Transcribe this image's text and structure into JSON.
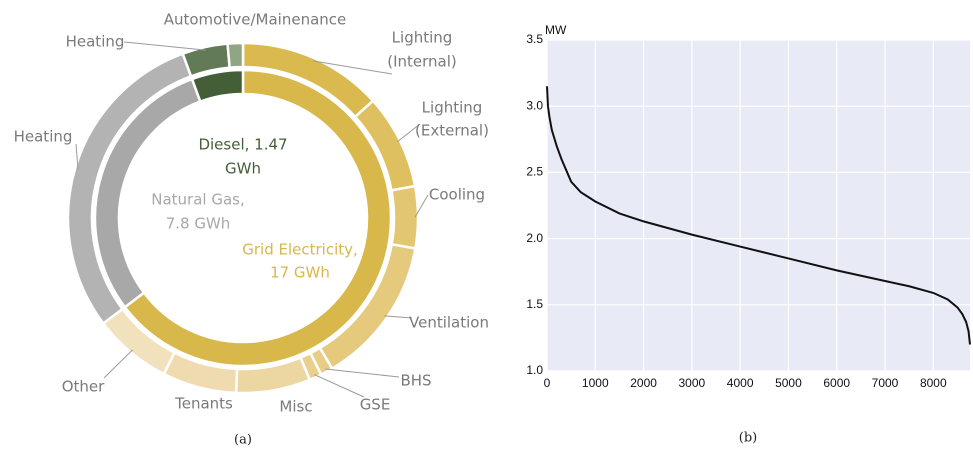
{
  "chart_data": [
    {
      "type": "donut",
      "caption": "(a)",
      "inner": {
        "values": [
          17,
          7.8,
          1.47
        ],
        "value_labels": [
          [
            "Grid Electricity,",
            "17 GWh"
          ],
          [
            "Natural Gas,",
            "7.8 GWh"
          ],
          [
            "Diesel, 1.47",
            "GWh"
          ]
        ],
        "colors": [
          "#d8b74b",
          "#a8a8a8",
          "#445f37"
        ]
      },
      "outer": {
        "categories": [
          [
            "Lighting",
            "(Internal)"
          ],
          [
            "Lighting",
            "(External)"
          ],
          [
            "Cooling"
          ],
          [
            "Ventilation"
          ],
          [
            "BHS"
          ],
          [
            "GSE"
          ],
          [
            "Misc"
          ],
          [
            "Tenants"
          ],
          [
            "Other"
          ],
          [
            "Heating"
          ],
          [
            "Heating"
          ],
          [
            "Automotive/Mainenance"
          ]
        ],
        "values": [
          3.5,
          2.3,
          1.5,
          3.6,
          0.3,
          0.3,
          1.8,
          1.8,
          1.9,
          7.8,
          1.1,
          0.37
        ],
        "colors": [
          "#dab94f",
          "#dfc061",
          "#e2c672",
          "#e5c97c",
          "#e8cd87",
          "#eacf8e",
          "#ecd6a2",
          "#efdbaf",
          "#f1e1bd",
          "#b3b3b3",
          "#627b56",
          "#90a584"
        ]
      }
    },
    {
      "type": "line",
      "caption": "(b)",
      "ylabel": "MW",
      "color": "#111111",
      "grid": true,
      "x": [
        0,
        20,
        50,
        100,
        200,
        300,
        500,
        700,
        1000,
        1500,
        2000,
        3000,
        4000,
        5000,
        6000,
        7000,
        7500,
        8000,
        8300,
        8500,
        8600,
        8680,
        8730,
        8760
      ],
      "values": [
        3.15,
        3.0,
        2.92,
        2.82,
        2.7,
        2.6,
        2.43,
        2.35,
        2.28,
        2.19,
        2.13,
        2.03,
        1.94,
        1.85,
        1.76,
        1.68,
        1.64,
        1.59,
        1.54,
        1.48,
        1.43,
        1.37,
        1.3,
        1.2
      ],
      "xlim": [
        0,
        8760
      ],
      "ylim": [
        1.0,
        3.5
      ],
      "xticks": [
        0,
        1000,
        2000,
        3000,
        4000,
        5000,
        6000,
        7000,
        8000
      ],
      "yticks": [
        {
          "value": 1.0,
          "label": "1.0"
        },
        1.5,
        {
          "value": 2.0,
          "label": "2.0"
        },
        2.5,
        {
          "value": 3.0,
          "label": "3.0"
        },
        3.5
      ]
    }
  ]
}
